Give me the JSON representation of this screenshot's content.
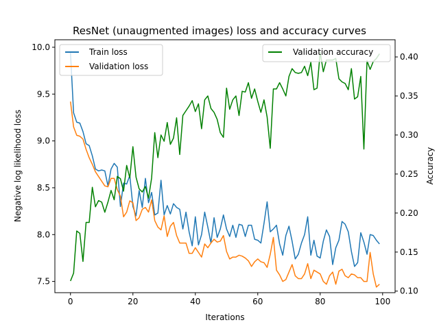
{
  "chart_data": {
    "type": "line",
    "title": "ResNet (unaugmented images) loss and accuracy curves",
    "xlabel": "Iterations",
    "ylabel_left": "Negative log likelihood loss",
    "ylabel_right": "Accuracy",
    "xlim": [
      -5,
      104
    ],
    "ylim_left": [
      7.38,
      10.08
    ],
    "ylim_right": [
      0.098,
      0.422
    ],
    "x_ticks": [
      0,
      20,
      40,
      60,
      80,
      100
    ],
    "y_ticks_left": [
      7.5,
      8.0,
      8.5,
      9.0,
      9.5,
      10.0
    ],
    "y_ticks_right": [
      0.1,
      0.15,
      0.2,
      0.25,
      0.3,
      0.35,
      0.4
    ],
    "x_tick_labels": [
      "0",
      "20",
      "40",
      "60",
      "80",
      "100"
    ],
    "y_tick_labels_left": [
      "7.5",
      "8.0",
      "8.5",
      "9.0",
      "9.5",
      "10.0"
    ],
    "y_tick_labels_right": [
      "0.10",
      "0.15",
      "0.20",
      "0.25",
      "0.30",
      "0.35",
      "0.40"
    ],
    "grid": false,
    "legend_left_placement": "top-left",
    "legend_right_placement": "top-right",
    "series": [
      {
        "name": "Train loss",
        "axis": "left",
        "color": "#1f77b4",
        "values": [
          9.94,
          9.3,
          9.2,
          9.19,
          9.1,
          8.97,
          8.95,
          8.84,
          8.7,
          8.68,
          8.69,
          8.68,
          8.52,
          8.7,
          8.76,
          8.72,
          8.3,
          8.55,
          8.54,
          8.63,
          8.3,
          8.2,
          8.47,
          8.29,
          8.6,
          8.34,
          8.45,
          8.21,
          8.23,
          8.58,
          8.21,
          8.31,
          8.22,
          8.33,
          8.29,
          8.27,
          8.06,
          8.24,
          8.03,
          7.88,
          8.19,
          7.89,
          8.0,
          8.24,
          8.08,
          7.91,
          8.18,
          7.97,
          8.06,
          8.21,
          8.06,
          7.98,
          8.1,
          7.97,
          8.11,
          8.1,
          7.98,
          8.1,
          8.1,
          7.95,
          7.94,
          7.91,
          8.12,
          8.35,
          8.03,
          8.06,
          8.1,
          7.9,
          7.78,
          7.99,
          8.09,
          7.93,
          7.74,
          7.79,
          7.91,
          8.0,
          8.19,
          7.78,
          7.94,
          7.77,
          7.75,
          7.93,
          8.05,
          7.98,
          7.68,
          7.86,
          7.94,
          8.14,
          8.11,
          8.03,
          7.82,
          7.66,
          7.7,
          8.02,
          7.92,
          7.79,
          8.0,
          7.99,
          7.94,
          7.9
        ]
      },
      {
        "name": "Validation loss",
        "axis": "left",
        "color": "#ff7f0e",
        "values": [
          9.42,
          9.15,
          9.06,
          9.05,
          9.02,
          8.91,
          8.82,
          8.75,
          8.67,
          8.62,
          8.57,
          8.52,
          8.51,
          8.6,
          8.6,
          8.48,
          8.41,
          8.19,
          8.24,
          8.36,
          8.34,
          8.15,
          8.18,
          8.27,
          8.29,
          8.24,
          8.37,
          8.15,
          8.08,
          8.05,
          8.2,
          7.98,
          8.09,
          8.13,
          7.99,
          7.91,
          7.91,
          7.91,
          7.8,
          7.8,
          7.86,
          7.81,
          7.76,
          7.9,
          7.86,
          7.91,
          7.95,
          7.92,
          7.93,
          7.99,
          7.82,
          7.74,
          7.76,
          7.76,
          7.78,
          7.77,
          7.75,
          7.72,
          7.66,
          7.71,
          7.74,
          7.71,
          7.7,
          7.65,
          7.79,
          7.97,
          7.62,
          7.57,
          7.5,
          7.52,
          7.6,
          7.68,
          7.56,
          7.53,
          7.53,
          7.58,
          7.69,
          7.53,
          7.62,
          7.6,
          7.58,
          7.5,
          7.47,
          7.56,
          7.6,
          7.47,
          7.61,
          7.63,
          7.56,
          7.54,
          7.58,
          7.57,
          7.54,
          7.54,
          7.5,
          7.5,
          7.81,
          7.58,
          7.44,
          7.47
        ]
      },
      {
        "name": "Validation accuracy",
        "axis": "right",
        "color": "#008000",
        "values": [
          0.113,
          0.123,
          0.177,
          0.174,
          0.138,
          0.188,
          0.188,
          0.233,
          0.208,
          0.216,
          0.214,
          0.201,
          0.214,
          0.229,
          0.217,
          0.247,
          0.244,
          0.228,
          0.261,
          0.245,
          0.285,
          0.246,
          0.231,
          0.227,
          0.234,
          0.219,
          0.245,
          0.303,
          0.271,
          0.3,
          0.292,
          0.316,
          0.288,
          0.296,
          0.322,
          0.275,
          0.325,
          0.331,
          0.337,
          0.344,
          0.33,
          0.34,
          0.308,
          0.345,
          0.35,
          0.334,
          0.329,
          0.32,
          0.303,
          0.297,
          0.36,
          0.333,
          0.345,
          0.35,
          0.325,
          0.356,
          0.355,
          0.367,
          0.347,
          0.359,
          0.343,
          0.329,
          0.345,
          0.323,
          0.283,
          0.359,
          0.359,
          0.367,
          0.359,
          0.35,
          0.375,
          0.385,
          0.38,
          0.379,
          0.38,
          0.388,
          0.376,
          0.393,
          0.358,
          0.36,
          0.406,
          0.381,
          0.396,
          0.396,
          0.396,
          0.398,
          0.372,
          0.368,
          0.366,
          0.358,
          0.385,
          0.346,
          0.349,
          0.375,
          0.282,
          0.395,
          0.384,
          0.394,
          0.398,
          0.404
        ]
      }
    ]
  }
}
